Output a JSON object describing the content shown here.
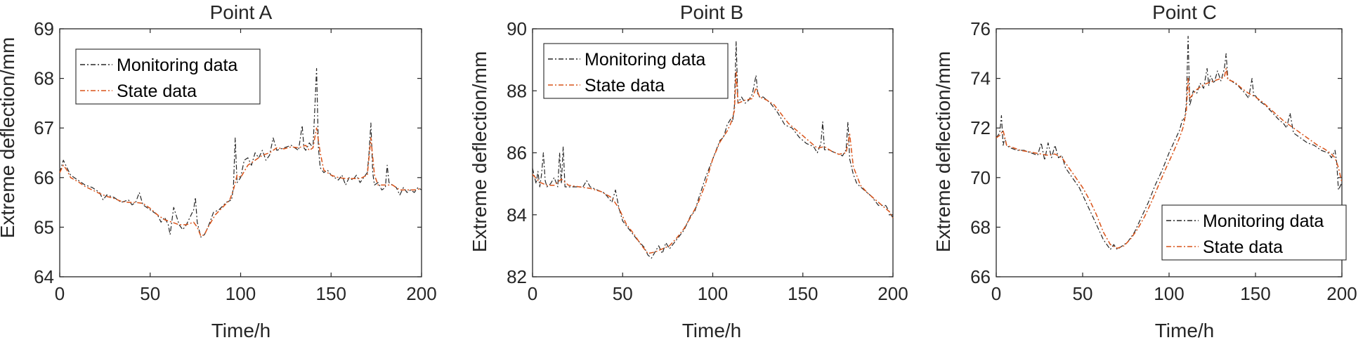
{
  "figure": {
    "series_colors": {
      "monitoring": "#262626",
      "state": "#D95319"
    },
    "axis_color": "#262626"
  },
  "chart_data": [
    {
      "type": "line",
      "title": "Point A",
      "xlabel": "Time/h",
      "ylabel": "Extreme deflection/mm",
      "xlim": [
        0,
        200
      ],
      "ylim": [
        64,
        69
      ],
      "xticks": [
        0,
        50,
        100,
        150,
        200
      ],
      "yticks": [
        64,
        65,
        66,
        67,
        68,
        69
      ],
      "legend_location": "top-left",
      "series": [
        {
          "name": "Monitoring data",
          "style": "dash-dot",
          "x": [
            0,
            2,
            4,
            6,
            10,
            14,
            18,
            22,
            24,
            26,
            30,
            34,
            38,
            40,
            42,
            44,
            46,
            50,
            54,
            56,
            58,
            60,
            61,
            63,
            66,
            68,
            70,
            72,
            74,
            75,
            76,
            78,
            80,
            82,
            85,
            88,
            92,
            95,
            96,
            97,
            98,
            100,
            102,
            104,
            106,
            108,
            110,
            112,
            114,
            116,
            118,
            120,
            124,
            128,
            132,
            134,
            135,
            136,
            138,
            140,
            141,
            142,
            143,
            144,
            146,
            148,
            150,
            152,
            154,
            156,
            158,
            160,
            162,
            164,
            166,
            168,
            170,
            171,
            172,
            173,
            174,
            176,
            178,
            180,
            181,
            182,
            184,
            186,
            188,
            190,
            192,
            194,
            196,
            198,
            200
          ],
          "values": [
            66.1,
            66.35,
            66.2,
            66.05,
            65.95,
            65.85,
            65.8,
            65.7,
            65.55,
            65.65,
            65.6,
            65.5,
            65.55,
            65.45,
            65.5,
            65.7,
            65.45,
            65.35,
            65.25,
            65.1,
            65.2,
            65.05,
            64.85,
            65.4,
            65.05,
            64.95,
            65.05,
            65.2,
            65.35,
            65.6,
            65.1,
            64.8,
            64.85,
            65.0,
            65.3,
            65.35,
            65.5,
            65.55,
            65.8,
            66.8,
            65.9,
            66.0,
            66.35,
            66.4,
            66.25,
            66.5,
            66.4,
            66.55,
            66.35,
            66.45,
            66.8,
            66.55,
            66.6,
            66.65,
            66.55,
            67.05,
            66.6,
            66.55,
            66.7,
            66.6,
            67.4,
            68.2,
            66.6,
            66.2,
            66.1,
            66.15,
            66.05,
            66.0,
            65.95,
            66.05,
            65.85,
            66.0,
            65.95,
            66.05,
            65.9,
            66.0,
            66.1,
            66.5,
            67.1,
            66.1,
            65.85,
            65.9,
            65.75,
            65.8,
            66.25,
            65.9,
            65.85,
            65.8,
            65.65,
            65.8,
            65.7,
            65.75,
            65.7,
            65.8,
            65.75
          ]
        },
        {
          "name": "State data",
          "style": "dash-dot",
          "x": [
            0,
            2,
            4,
            6,
            10,
            14,
            18,
            22,
            26,
            30,
            34,
            38,
            42,
            46,
            50,
            54,
            58,
            62,
            66,
            70,
            74,
            76,
            78,
            80,
            82,
            86,
            90,
            94,
            96,
            98,
            100,
            104,
            108,
            112,
            116,
            120,
            124,
            128,
            132,
            136,
            138,
            140,
            142,
            144,
            146,
            150,
            154,
            158,
            162,
            166,
            170,
            172,
            174,
            176,
            180,
            184,
            188,
            192,
            196,
            200
          ],
          "values": [
            66.1,
            66.25,
            66.15,
            66.0,
            65.92,
            65.82,
            65.75,
            65.68,
            65.62,
            65.58,
            65.52,
            65.5,
            65.5,
            65.48,
            65.38,
            65.25,
            65.15,
            65.1,
            65.05,
            65.05,
            65.1,
            65.0,
            64.82,
            64.85,
            65.0,
            65.25,
            65.4,
            65.55,
            65.75,
            66.05,
            66.0,
            66.25,
            66.35,
            66.45,
            66.5,
            66.6,
            66.58,
            66.62,
            66.6,
            66.65,
            66.55,
            66.6,
            67.0,
            66.5,
            66.15,
            66.05,
            66.0,
            65.98,
            65.98,
            65.98,
            66.05,
            66.8,
            66.05,
            65.85,
            65.85,
            65.85,
            65.75,
            65.75,
            65.75,
            65.78
          ]
        }
      ]
    },
    {
      "type": "line",
      "title": "Point B",
      "xlabel": "Time/h",
      "ylabel": "Extreme deflection/mm",
      "xlim": [
        0,
        200
      ],
      "ylim": [
        82,
        90
      ],
      "xticks": [
        0,
        50,
        100,
        150,
        200
      ],
      "yticks": [
        82,
        84,
        86,
        88,
        90
      ],
      "legend_location": "top-left",
      "series": [
        {
          "name": "Monitoring data",
          "style": "dash-dot",
          "x": [
            0,
            2,
            3,
            4,
            5,
            6,
            7,
            8,
            10,
            12,
            14,
            15,
            16,
            17,
            18,
            20,
            24,
            28,
            30,
            32,
            36,
            40,
            44,
            46,
            48,
            50,
            54,
            58,
            62,
            64,
            66,
            68,
            70,
            72,
            74,
            76,
            80,
            84,
            88,
            90,
            92,
            96,
            100,
            104,
            106,
            108,
            110,
            111,
            112,
            113,
            114,
            116,
            118,
            120,
            122,
            124,
            125,
            126,
            128,
            132,
            136,
            140,
            144,
            148,
            152,
            156,
            158,
            160,
            161,
            162,
            164,
            168,
            172,
            174,
            175,
            176,
            178,
            180,
            184,
            188,
            192,
            196,
            200
          ],
          "values": [
            85.5,
            85.0,
            85.4,
            84.9,
            85.3,
            86.0,
            85.1,
            84.9,
            85.0,
            85.2,
            84.9,
            86.0,
            85.0,
            86.2,
            84.9,
            84.9,
            84.9,
            84.9,
            85.1,
            84.9,
            84.8,
            84.7,
            84.4,
            84.8,
            84.2,
            83.8,
            83.5,
            83.2,
            82.95,
            82.7,
            82.6,
            82.8,
            83.0,
            82.75,
            83.1,
            82.9,
            83.2,
            83.5,
            84.0,
            84.1,
            84.5,
            85.2,
            85.8,
            86.4,
            86.5,
            86.9,
            87.1,
            87.0,
            87.5,
            89.6,
            87.6,
            87.8,
            87.6,
            87.7,
            87.9,
            88.5,
            87.9,
            87.8,
            87.8,
            87.6,
            87.3,
            86.9,
            86.8,
            86.5,
            86.3,
            86.2,
            86.0,
            86.3,
            87.0,
            86.1,
            86.1,
            86.0,
            85.9,
            86.1,
            87.0,
            85.8,
            85.3,
            85.0,
            84.8,
            84.6,
            84.3,
            84.3,
            83.9
          ]
        },
        {
          "name": "State data",
          "style": "dash-dot",
          "x": [
            0,
            4,
            8,
            12,
            16,
            20,
            26,
            32,
            38,
            44,
            48,
            52,
            56,
            60,
            64,
            68,
            72,
            76,
            80,
            84,
            88,
            92,
            96,
            100,
            104,
            108,
            110,
            112,
            113,
            114,
            118,
            122,
            124,
            126,
            130,
            134,
            138,
            142,
            146,
            150,
            154,
            158,
            162,
            166,
            170,
            174,
            176,
            178,
            182,
            186,
            190,
            194,
            198,
            200
          ],
          "values": [
            85.3,
            85.05,
            84.95,
            84.95,
            85.15,
            84.95,
            84.9,
            84.85,
            84.75,
            84.55,
            84.2,
            83.7,
            83.4,
            83.05,
            82.75,
            82.8,
            82.9,
            83.0,
            83.25,
            83.55,
            83.95,
            84.4,
            85.0,
            85.8,
            86.35,
            86.7,
            86.95,
            87.35,
            88.6,
            87.6,
            87.7,
            87.75,
            88.1,
            87.8,
            87.7,
            87.55,
            87.25,
            86.95,
            86.75,
            86.55,
            86.35,
            86.15,
            86.2,
            86.05,
            85.95,
            86.0,
            86.6,
            85.55,
            84.95,
            84.7,
            84.5,
            84.3,
            84.1,
            83.9
          ]
        }
      ]
    },
    {
      "type": "line",
      "title": "Point C",
      "xlabel": "Time/h",
      "ylabel": "Extreme deflection/mm",
      "xlim": [
        0,
        200
      ],
      "ylim": [
        66,
        76
      ],
      "xticks": [
        0,
        50,
        100,
        150,
        200
      ],
      "yticks": [
        66,
        68,
        70,
        72,
        74,
        76
      ],
      "legend_location": "bottom-right",
      "series": [
        {
          "name": "Monitoring data",
          "style": "dash-dot",
          "x": [
            0,
            2,
            3,
            4,
            5,
            6,
            8,
            12,
            16,
            20,
            24,
            26,
            28,
            30,
            32,
            34,
            36,
            38,
            40,
            44,
            48,
            52,
            56,
            60,
            62,
            64,
            66,
            68,
            70,
            72,
            76,
            80,
            84,
            88,
            92,
            96,
            100,
            104,
            106,
            108,
            109,
            110,
            111,
            112,
            114,
            116,
            118,
            120,
            122,
            123,
            124,
            126,
            128,
            130,
            132,
            133,
            134,
            136,
            140,
            144,
            146,
            148,
            149,
            150,
            152,
            156,
            160,
            164,
            166,
            168,
            170,
            172,
            176,
            180,
            184,
            188,
            192,
            194,
            196,
            197,
            198,
            200
          ],
          "values": [
            71.6,
            71.8,
            72.5,
            71.3,
            71.6,
            71.3,
            71.2,
            71.1,
            71.1,
            71.0,
            70.9,
            71.4,
            70.7,
            71.4,
            70.8,
            71.3,
            70.8,
            70.9,
            70.4,
            70.0,
            69.6,
            69.0,
            68.4,
            67.8,
            67.5,
            67.3,
            67.1,
            67.3,
            67.1,
            67.2,
            67.4,
            67.8,
            68.4,
            69.0,
            69.7,
            70.3,
            71.0,
            71.6,
            71.9,
            72.4,
            72.3,
            73.0,
            75.7,
            72.9,
            73.5,
            73.4,
            73.8,
            73.6,
            74.4,
            73.7,
            74.1,
            73.8,
            74.3,
            73.9,
            74.4,
            75.0,
            74.0,
            73.9,
            73.7,
            73.4,
            73.2,
            74.0,
            73.3,
            73.3,
            73.1,
            72.9,
            72.6,
            72.3,
            72.2,
            72.0,
            72.6,
            71.8,
            71.6,
            71.4,
            71.3,
            71.1,
            71.0,
            70.8,
            71.1,
            70.6,
            69.5,
            69.8
          ]
        },
        {
          "name": "State data",
          "style": "dash-dot",
          "x": [
            0,
            2,
            4,
            6,
            10,
            14,
            18,
            22,
            26,
            30,
            34,
            38,
            42,
            46,
            50,
            54,
            58,
            62,
            66,
            70,
            74,
            78,
            82,
            86,
            90,
            94,
            98,
            102,
            106,
            108,
            110,
            111,
            112,
            116,
            120,
            124,
            128,
            132,
            133,
            134,
            138,
            142,
            146,
            150,
            154,
            158,
            162,
            166,
            170,
            174,
            178,
            182,
            186,
            190,
            194,
            196,
            198,
            200
          ],
          "values": [
            71.6,
            71.7,
            71.9,
            71.3,
            71.2,
            71.1,
            71.05,
            71.0,
            70.95,
            70.9,
            70.95,
            70.8,
            70.4,
            70.0,
            69.6,
            69.1,
            68.5,
            67.8,
            67.3,
            67.15,
            67.25,
            67.55,
            67.95,
            68.45,
            69.05,
            69.7,
            70.35,
            70.95,
            71.6,
            72.0,
            72.7,
            74.0,
            73.2,
            73.55,
            73.75,
            73.85,
            73.95,
            74.05,
            74.4,
            73.95,
            73.85,
            73.6,
            73.4,
            73.25,
            73.05,
            72.8,
            72.55,
            72.3,
            72.1,
            71.9,
            71.7,
            71.5,
            71.3,
            71.15,
            70.95,
            70.8,
            70.4,
            69.8
          ]
        }
      ]
    }
  ]
}
